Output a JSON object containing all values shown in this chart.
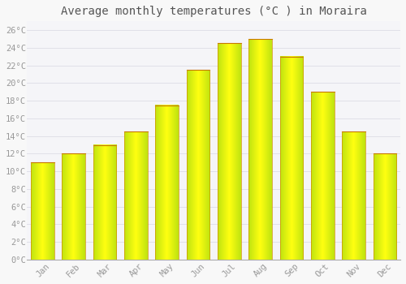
{
  "title": "Average monthly temperatures (°C ) in Moraira",
  "months": [
    "Jan",
    "Feb",
    "Mar",
    "Apr",
    "May",
    "Jun",
    "Jul",
    "Aug",
    "Sep",
    "Oct",
    "Nov",
    "Dec"
  ],
  "values": [
    11.0,
    12.0,
    13.0,
    14.5,
    17.5,
    21.5,
    24.5,
    25.0,
    23.0,
    19.0,
    14.5,
    12.0
  ],
  "bar_color_center": "#FFD050",
  "bar_color_edge": "#F5A000",
  "bar_top_color": "#C87800",
  "background_color": "#F8F8F8",
  "plot_bg_color": "#F5F5F8",
  "grid_color": "#E0E0E8",
  "ylim": [
    0,
    27
  ],
  "ytick_step": 2,
  "title_fontsize": 10,
  "tick_fontsize": 7.5,
  "tick_color": "#999999",
  "font_family": "monospace",
  "bar_width": 0.75
}
